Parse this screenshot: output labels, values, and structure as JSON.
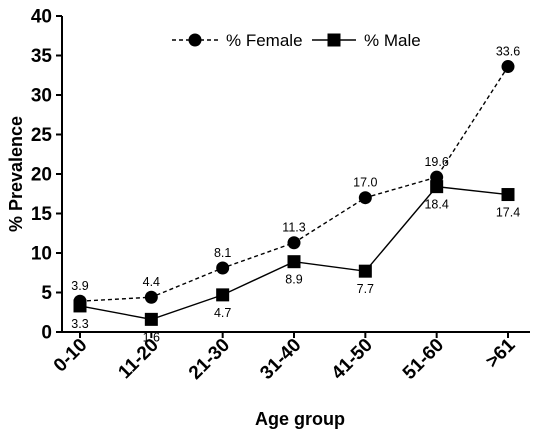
{
  "chart_data": {
    "type": "line",
    "categories": [
      "0-10",
      "11-20",
      "21-30",
      "31-40",
      "41-50",
      "51-60",
      ">61"
    ],
    "series": [
      {
        "name": "% Female",
        "values": [
          3.9,
          4.4,
          8.1,
          11.3,
          17.0,
          19.6,
          33.6
        ],
        "labels": [
          "3.9",
          "4.4",
          "8.1",
          "11.3",
          "17.0",
          "19.6",
          "33.6"
        ],
        "marker": "circle",
        "line_style": "dashed"
      },
      {
        "name": "% Male",
        "values": [
          3.3,
          1.6,
          4.7,
          8.9,
          7.7,
          18.4,
          17.4
        ],
        "labels": [
          "3.3",
          "1.6",
          "4.7",
          "8.9",
          "7.7",
          "18.4",
          "17.4"
        ],
        "marker": "square",
        "line_style": "solid"
      }
    ],
    "title": "",
    "xlabel": "Age group",
    "ylabel": "% Prevalence",
    "ylim": [
      0,
      40
    ],
    "yticks": [
      "0",
      "5",
      "10",
      "15",
      "20",
      "25",
      "30",
      "35",
      "40"
    ],
    "grid": false,
    "legend": "top"
  }
}
